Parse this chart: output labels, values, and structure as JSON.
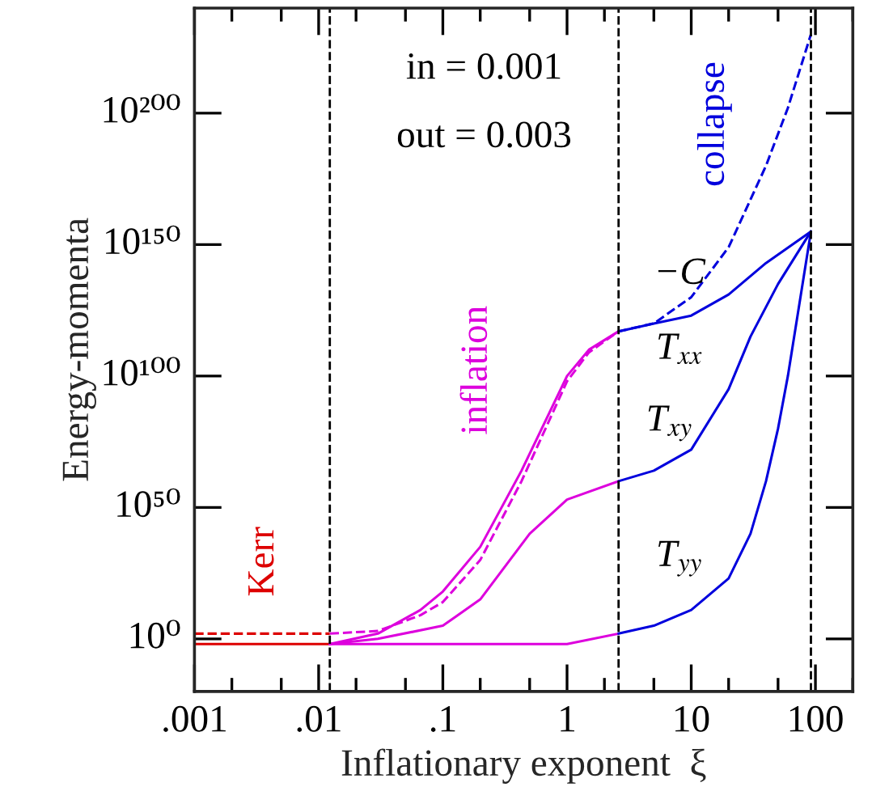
{
  "chart_data": {
    "type": "line",
    "xlabel": "Inflationary exponent  ξ",
    "ylabel": "Energy-momenta",
    "log": "xy",
    "grid": false,
    "legend": false,
    "xlim": [
      0.001,
      200
    ],
    "ylim": [
      1e-20,
      1e+240
    ],
    "xticks": [
      {
        "value": 0.001,
        "label": ".001"
      },
      {
        "value": 0.01,
        "label": ".01"
      },
      {
        "value": 0.1,
        "label": ".1"
      },
      1,
      10,
      100,
      {
        "value": 0.002,
        "label": null
      },
      {
        "value": 0.005,
        "label": null
      },
      {
        "value": 0.02,
        "label": null
      },
      {
        "value": 0.05,
        "label": null
      },
      {
        "value": 0.2,
        "label": null
      },
      {
        "value": 0.5,
        "label": null
      },
      {
        "value": 2,
        "label": null
      },
      {
        "value": 5,
        "label": null
      },
      {
        "value": 20,
        "label": null
      },
      {
        "value": 50,
        "label": null
      },
      {
        "value": 200,
        "label": null
      }
    ],
    "yticks": [
      {
        "value": 1,
        "label": "10⁰"
      },
      {
        "value": 1e+50,
        "label": "10⁵⁰"
      },
      {
        "value": 1e+100,
        "label": "10¹⁰⁰"
      },
      {
        "value": 1e+150,
        "label": "10¹⁵⁰"
      },
      {
        "value": 1e+200,
        "label": "10²⁰⁰"
      }
    ],
    "series": [
      {
        "color": "#dd0000",
        "line_style": "solid",
        "x": [
          0.001,
          0.0123
        ],
        "values": [
          0.01,
          0.01
        ]
      },
      {
        "color": "#dd0000",
        "line_style": "dashed",
        "x": [
          0.001,
          0.0123
        ],
        "values": [
          100.0,
          100.0
        ]
      },
      {
        "color": "#dd00dd",
        "line_style": "solid",
        "x": [
          0.0123,
          0.03,
          0.066,
          0.1,
          0.2,
          0.43,
          1,
          1.5,
          2.6
        ],
        "values": [
          0.01,
          100.0,
          100000000000.0,
          1e+18,
          1e+35,
          1e+64,
          1e+100,
          1e+110,
          1e+117
        ]
      },
      {
        "color": "#dd00dd",
        "line_style": "dashed",
        "x": [
          0.0123,
          0.03,
          0.066,
          0.1,
          0.2,
          0.43,
          1,
          1.5,
          2.6
        ],
        "values": [
          100.0,
          1000.0,
          1000000000.0,
          100000000000000.0,
          1e+30,
          1e+60,
          1e+98,
          1e+109,
          1e+117
        ]
      },
      {
        "color": "#dd00dd",
        "line_style": "solid",
        "x": [
          0.0123,
          0.03,
          0.1,
          0.2,
          0.5,
          1,
          2.6
        ],
        "values": [
          0.01,
          1.0,
          100000.0,
          1000000000000000.0,
          1e+40,
          1e+53,
          1e+60
        ]
      },
      {
        "color": "#dd00dd",
        "line_style": "solid",
        "x": [
          0.0123,
          0.1,
          1,
          2.6
        ],
        "values": [
          0.01,
          0.01,
          0.01,
          100.0
        ]
      },
      {
        "color": "#0000dd",
        "line_style": "solid",
        "x": [
          2.6,
          5,
          10,
          20,
          40,
          92
        ],
        "values": [
          1e+117,
          1e+120,
          1e+123,
          1e+131,
          1e+143,
          1e+155
        ]
      },
      {
        "color": "#0000dd",
        "line_style": "dashed",
        "x": [
          2.6,
          5,
          10,
          20,
          40,
          60,
          92
        ],
        "values": [
          1e+117,
          1e+120,
          1e+130,
          1e+149,
          1e+180,
          1e+202,
          1e+230
        ]
      },
      {
        "color": "#0000dd",
        "line_style": "solid",
        "x": [
          2.6,
          5,
          10,
          20,
          30,
          50,
          92
        ],
        "values": [
          1e+60,
          1e+64,
          1e+72,
          1e+95,
          1e+115,
          1e+135,
          1e+155
        ]
      },
      {
        "color": "#0000dd",
        "line_style": "solid",
        "x": [
          2.6,
          5,
          10,
          20,
          30,
          40,
          50,
          60,
          92
        ],
        "values": [
          100.0,
          100000.0,
          100000000000.0,
          1e+23,
          1e+40,
          1e+60,
          1e+80,
          1e+100,
          1e+155
        ]
      }
    ],
    "ref_lines": [
      {
        "axis": "x",
        "value": 0.0123,
        "color": "#000000",
        "line_style": "dashed"
      },
      {
        "axis": "x",
        "value": 2.6,
        "color": "#000000",
        "line_style": "dashed"
      },
      {
        "axis": "x",
        "value": 92,
        "color": "#000000",
        "line_style": "dashed"
      }
    ],
    "annotations": [
      "in = 0.001",
      "out = 0.003",
      "Kerr",
      "inflation",
      "collapse",
      "−C",
      "T$_{xx}$",
      "T$_{xy}$",
      "T$_{yy}$"
    ]
  }
}
